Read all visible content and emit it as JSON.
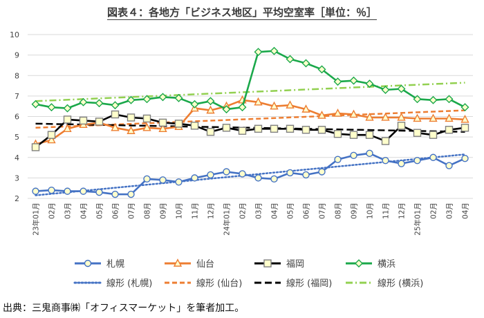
{
  "title": "図表４：各地方「ビジネス地区」平均空室率［単位：％］",
  "source": "出典：三鬼商事㈱「オフィスマーケット」を筆者加工。",
  "chart_data": {
    "type": "line",
    "title": "図表４：各地方「ビジネス地区」平均空室率［単位：％］",
    "ylim": [
      2,
      10
    ],
    "yticks": [
      2,
      3,
      4,
      5,
      6,
      7,
      8,
      9,
      10
    ],
    "grid": true,
    "legend_position": "bottom",
    "x_labels": [
      "23年01月",
      "02月",
      "03月",
      "04月",
      "05月",
      "06月",
      "07月",
      "08月",
      "09月",
      "10月",
      "11月",
      "12月",
      "24年01月",
      "02月",
      "03月",
      "04月",
      "05月",
      "06月",
      "07月",
      "08月",
      "09月",
      "10月",
      "11月",
      "12月",
      "25年01月",
      "02月",
      "03月",
      "04月"
    ],
    "series": [
      {
        "name": "札幌",
        "color": "#4472c4",
        "marker": "circle",
        "values": [
          2.35,
          2.4,
          2.35,
          2.35,
          2.3,
          2.2,
          2.2,
          2.95,
          2.9,
          2.8,
          3.0,
          3.15,
          3.3,
          3.2,
          3.0,
          2.95,
          3.25,
          3.15,
          3.3,
          3.9,
          4.1,
          4.2,
          3.85,
          3.7,
          3.85,
          4.0,
          3.6,
          3.95
        ]
      },
      {
        "name": "仙台",
        "color": "#ed7d31",
        "marker": "triangle",
        "values": [
          4.65,
          4.85,
          5.4,
          5.6,
          5.7,
          5.45,
          5.3,
          5.45,
          5.4,
          5.5,
          6.4,
          6.3,
          6.5,
          6.8,
          6.7,
          6.5,
          6.55,
          6.35,
          6.05,
          6.15,
          6.1,
          5.95,
          5.95,
          5.95,
          5.9,
          5.9,
          5.9,
          5.85
        ]
      },
      {
        "name": "福岡",
        "color": "#000000",
        "marker": "square",
        "values": [
          4.5,
          5.1,
          5.85,
          5.8,
          5.75,
          6.1,
          5.95,
          5.9,
          5.7,
          5.65,
          5.55,
          5.25,
          5.45,
          5.3,
          5.4,
          5.4,
          5.4,
          5.35,
          5.35,
          5.15,
          5.1,
          5.1,
          4.8,
          5.55,
          5.2,
          5.1,
          5.35,
          5.45
        ]
      },
      {
        "name": "横浜",
        "color": "#1aa84a",
        "marker": "diamond",
        "values": [
          6.6,
          6.45,
          6.4,
          6.7,
          6.65,
          6.55,
          6.8,
          6.85,
          6.95,
          6.9,
          6.6,
          6.75,
          6.35,
          6.45,
          9.15,
          9.2,
          8.8,
          8.6,
          8.3,
          7.7,
          7.75,
          7.6,
          7.3,
          7.35,
          6.85,
          6.8,
          6.85,
          6.45
        ]
      }
    ],
    "trendlines": [
      {
        "name": "線形 (札幌)",
        "color": "#4472c4",
        "style": "dotted",
        "start": 2.15,
        "end": 4.15
      },
      {
        "name": "線形 (仙台)",
        "color": "#ed7d31",
        "style": "dashed",
        "start": 5.45,
        "end": 6.3
      },
      {
        "name": "線形 (福岡)",
        "color": "#000000",
        "style": "longdash",
        "start": 5.65,
        "end": 5.25
      },
      {
        "name": "線形 (横浜)",
        "color": "#92d050",
        "style": "dashdot",
        "start": 6.75,
        "end": 7.65
      }
    ]
  }
}
